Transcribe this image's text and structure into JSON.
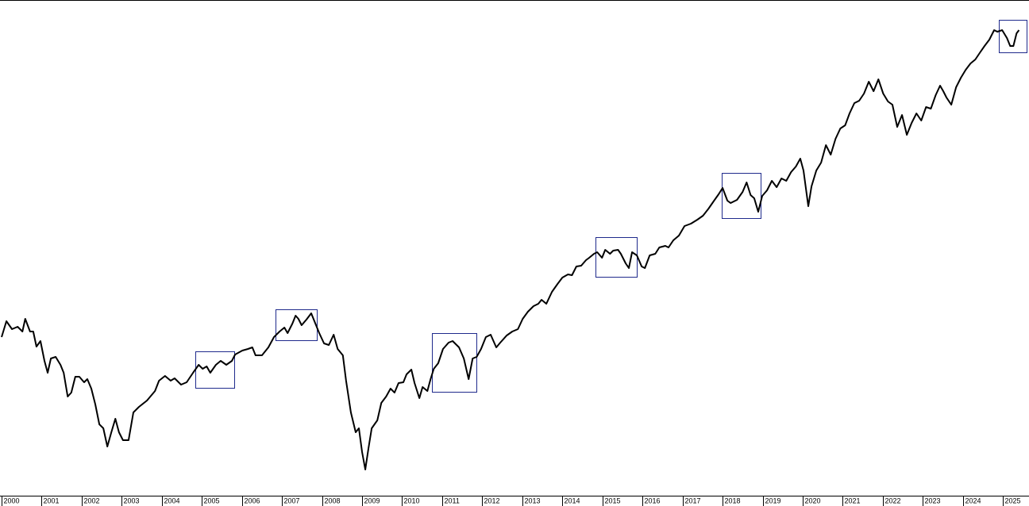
{
  "chart_data": {
    "type": "line",
    "color": "#000000",
    "xlim": [
      1999.96,
      2025.65
    ],
    "ylim": [
      0,
      625
    ],
    "xticks": [
      2000,
      2001,
      2002,
      2003,
      2004,
      2005,
      2006,
      2007,
      2008,
      2009,
      2010,
      2011,
      2012,
      2013,
      2014,
      2015,
      2016,
      2017,
      2018,
      2019,
      2020,
      2021,
      2022,
      2023,
      2024,
      2025
    ],
    "x": [
      2000.0,
      2000.12,
      2000.26,
      2000.4,
      2000.52,
      2000.59,
      2000.71,
      2000.79,
      2000.87,
      2000.97,
      2001.07,
      2001.15,
      2001.23,
      2001.35,
      2001.47,
      2001.55,
      2001.65,
      2001.74,
      2001.84,
      2001.94,
      2002.06,
      2002.14,
      2002.24,
      2002.34,
      2002.44,
      2002.54,
      2002.64,
      2002.74,
      2002.84,
      2002.93,
      2003.03,
      2003.17,
      2003.29,
      2003.43,
      2003.63,
      2003.83,
      2003.93,
      2004.08,
      2004.22,
      2004.32,
      2004.48,
      2004.62,
      2004.78,
      2004.92,
      2005.02,
      2005.12,
      2005.21,
      2005.35,
      2005.47,
      2005.61,
      2005.75,
      2005.83,
      2006.01,
      2006.15,
      2006.26,
      2006.34,
      2006.5,
      2006.66,
      2006.8,
      2006.94,
      2007.06,
      2007.14,
      2007.26,
      2007.34,
      2007.41,
      2007.49,
      2007.61,
      2007.73,
      2007.81,
      2007.93,
      2008.05,
      2008.17,
      2008.29,
      2008.39,
      2008.52,
      2008.6,
      2008.72,
      2008.84,
      2008.92,
      2009.0,
      2009.08,
      2009.16,
      2009.24,
      2009.38,
      2009.48,
      2009.6,
      2009.71,
      2009.81,
      2009.91,
      2010.03,
      2010.11,
      2010.23,
      2010.31,
      2010.43,
      2010.51,
      2010.63,
      2010.71,
      2010.79,
      2010.9,
      2011.02,
      2011.16,
      2011.26,
      2011.42,
      2011.54,
      2011.66,
      2011.76,
      2011.86,
      2011.97,
      2012.09,
      2012.21,
      2012.35,
      2012.45,
      2012.61,
      2012.75,
      2012.89,
      2013.01,
      2013.14,
      2013.28,
      2013.4,
      2013.48,
      2013.6,
      2013.74,
      2013.88,
      2014.0,
      2014.14,
      2014.24,
      2014.35,
      2014.47,
      2014.59,
      2014.67,
      2014.79,
      2014.87,
      2014.99,
      2015.07,
      2015.19,
      2015.27,
      2015.39,
      2015.46,
      2015.58,
      2015.66,
      2015.74,
      2015.86,
      2015.98,
      2016.06,
      2016.18,
      2016.32,
      2016.42,
      2016.57,
      2016.65,
      2016.77,
      2016.91,
      2017.05,
      2017.21,
      2017.37,
      2017.51,
      2017.65,
      2017.76,
      2017.9,
      2018.0,
      2018.12,
      2018.2,
      2018.36,
      2018.5,
      2018.6,
      2018.7,
      2018.79,
      2018.89,
      2018.99,
      2019.11,
      2019.23,
      2019.35,
      2019.47,
      2019.59,
      2019.71,
      2019.83,
      2019.94,
      2020.02,
      2020.14,
      2020.22,
      2020.34,
      2020.46,
      2020.58,
      2020.7,
      2020.82,
      2020.94,
      2021.06,
      2021.17,
      2021.29,
      2021.41,
      2021.53,
      2021.65,
      2021.77,
      2021.89,
      2022.01,
      2022.13,
      2022.24,
      2022.36,
      2022.48,
      2022.6,
      2022.72,
      2022.84,
      2022.96,
      2023.08,
      2023.2,
      2023.32,
      2023.43,
      2023.51,
      2023.59,
      2023.71,
      2023.83,
      2023.95,
      2024.07,
      2024.19,
      2024.31,
      2024.43,
      2024.54,
      2024.66,
      2024.78,
      2024.86,
      2024.98,
      2025.1,
      2025.18,
      2025.26,
      2025.34,
      2025.4
    ],
    "values": [
      200,
      220,
      210,
      213,
      207,
      223,
      207,
      207,
      188,
      195,
      170,
      155,
      173,
      175,
      165,
      155,
      125,
      130,
      150,
      150,
      143,
      147,
      135,
      115,
      90,
      85,
      62,
      80,
      97,
      80,
      70,
      70,
      105,
      112,
      120,
      132,
      145,
      151,
      145,
      148,
      140,
      143,
      155,
      165,
      160,
      163,
      155,
      165,
      170,
      165,
      170,
      178,
      183,
      185,
      187,
      177,
      177,
      187,
      200,
      207,
      212,
      205,
      217,
      227,
      223,
      215,
      222,
      230,
      220,
      205,
      192,
      190,
      203,
      185,
      177,
      145,
      105,
      80,
      85,
      55,
      33,
      60,
      85,
      95,
      117,
      125,
      135,
      130,
      142,
      143,
      153,
      159,
      142,
      123,
      137,
      132,
      147,
      160,
      167,
      185,
      193,
      195,
      187,
      173,
      147,
      173,
      175,
      185,
      200,
      203,
      187,
      193,
      202,
      207,
      210,
      223,
      232,
      239,
      242,
      247,
      242,
      257,
      267,
      275,
      279,
      278,
      289,
      290,
      297,
      300,
      305,
      307,
      300,
      310,
      305,
      309,
      310,
      305,
      293,
      287,
      307,
      303,
      289,
      287,
      303,
      305,
      313,
      315,
      313,
      322,
      328,
      340,
      343,
      348,
      353,
      362,
      370,
      380,
      388,
      372,
      369,
      373,
      383,
      395,
      379,
      375,
      358,
      378,
      385,
      397,
      389,
      400,
      397,
      408,
      415,
      425,
      410,
      365,
      390,
      410,
      420,
      442,
      430,
      450,
      463,
      467,
      482,
      495,
      498,
      507,
      522,
      510,
      525,
      507,
      497,
      493,
      465,
      480,
      455,
      470,
      482,
      473,
      490,
      488,
      505,
      517,
      510,
      502,
      493,
      515,
      527,
      537,
      545,
      550,
      559,
      567,
      575,
      587,
      585,
      587,
      577,
      567,
      567,
      583,
      587
    ]
  }
}
